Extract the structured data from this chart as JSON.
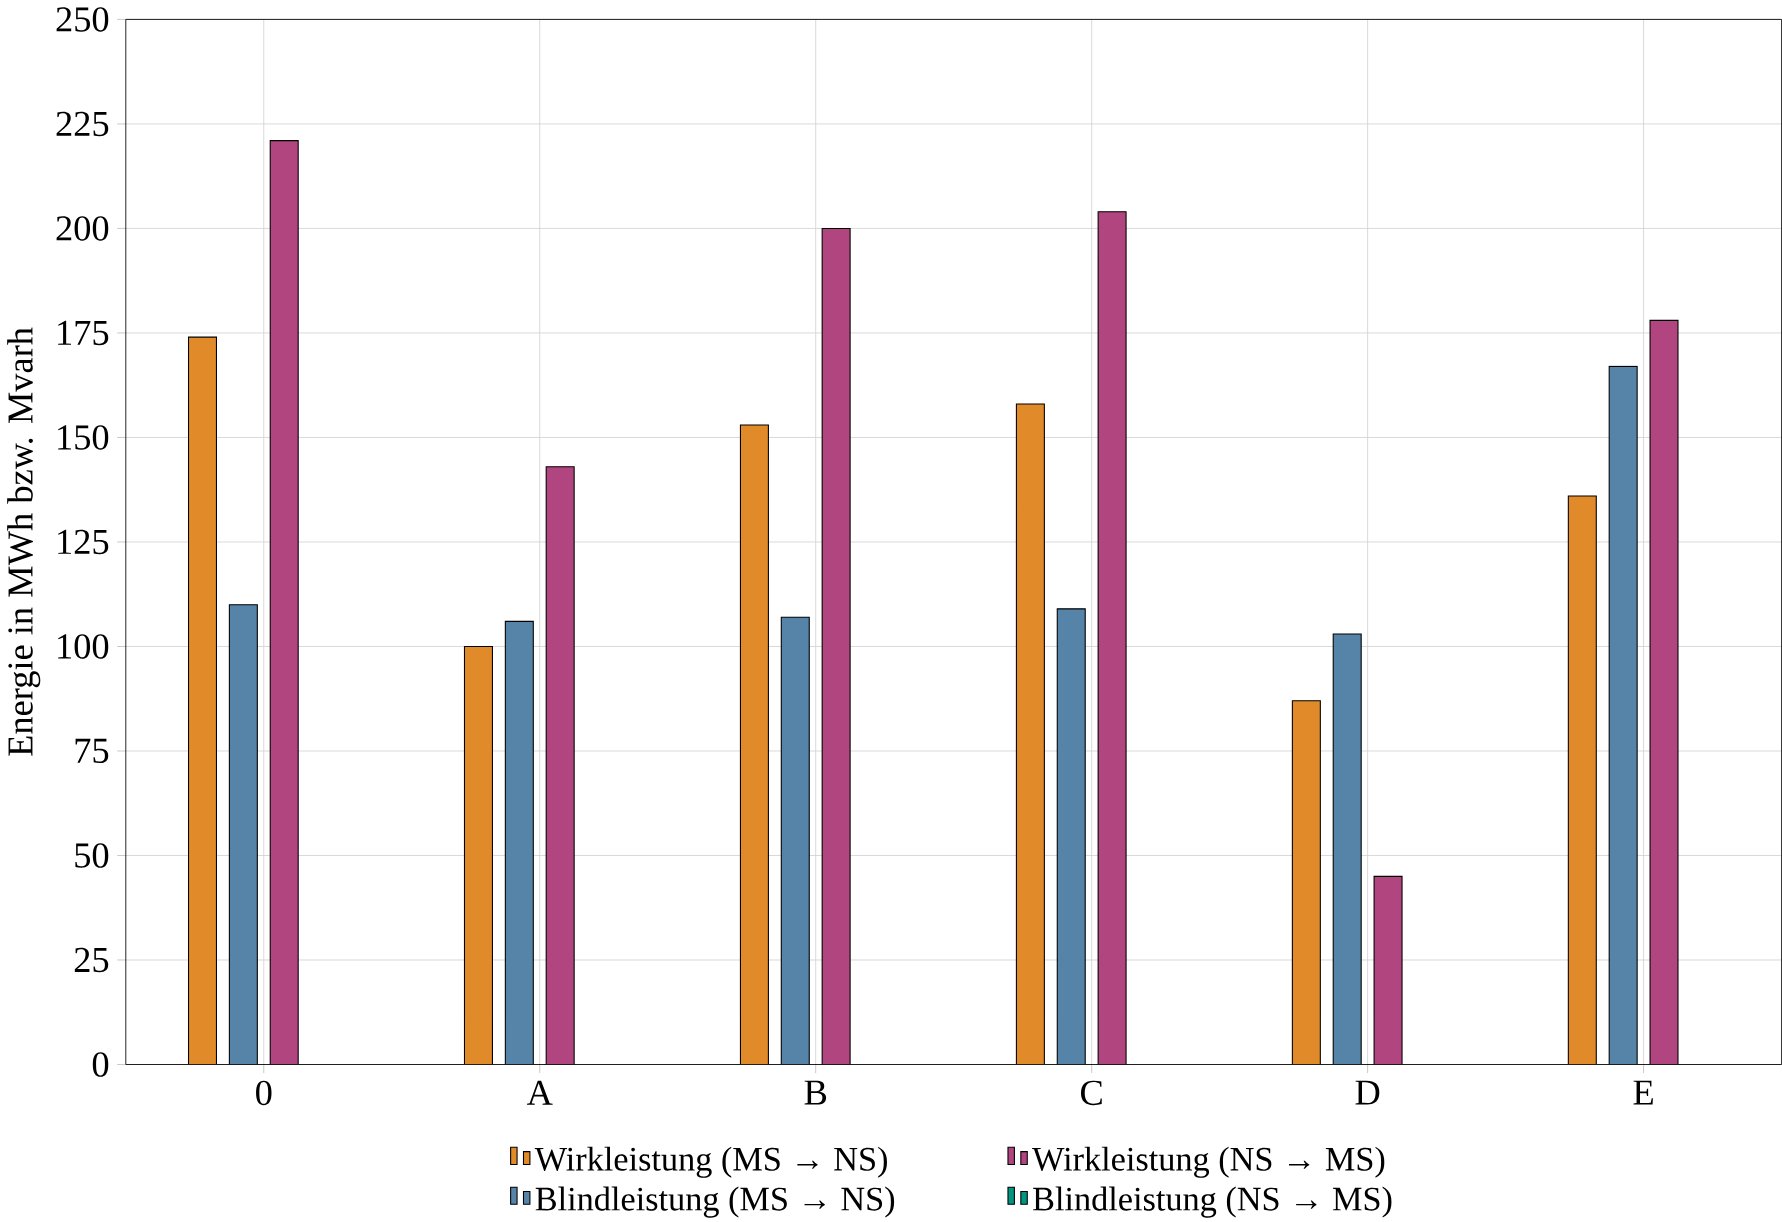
{
  "chart_data": {
    "type": "bar",
    "ylabel": "Energie in MWh bzw. Mvarh",
    "categories": [
      "0",
      "A",
      "B",
      "C",
      "D",
      "E"
    ],
    "series": [
      {
        "name": "Wirkleistung (MS → NS)",
        "color": "#e18a2a",
        "values": [
          174,
          100,
          153,
          158,
          87,
          136
        ]
      },
      {
        "name": "Blindleistung (MS → NS)",
        "color": "#5584a8",
        "values": [
          110,
          106,
          107,
          109,
          103,
          167
        ]
      },
      {
        "name": "Wirkleistung (NS → MS)",
        "color": "#b0457f",
        "values": [
          221,
          143,
          200,
          204,
          45,
          178
        ]
      },
      {
        "name": "Blindleistung (NS → MS)",
        "color": "#009682",
        "values": [
          null,
          null,
          null,
          null,
          null,
          null
        ]
      }
    ],
    "ylim": [
      0,
      250
    ],
    "yticks": [
      0,
      25,
      50,
      75,
      100,
      125,
      150,
      175,
      200,
      225,
      250
    ],
    "grid": true,
    "legend": "bottom"
  }
}
